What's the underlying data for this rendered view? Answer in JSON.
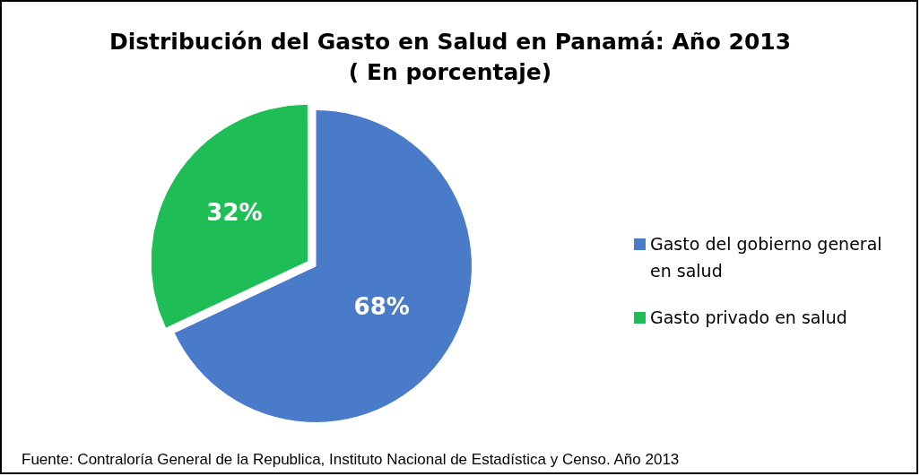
{
  "chart_data": {
    "type": "pie",
    "title": "Distribución del Gasto en Salud en Panamá: Año 2013",
    "subtitle": "( En porcentaje)",
    "categories": [
      "Gasto del gobierno general en salud",
      "Gasto privado en salud"
    ],
    "values": [
      68,
      32
    ],
    "colors": [
      "#4a7bc8",
      "#1fbd55"
    ],
    "value_labels": [
      "68%",
      "32%"
    ],
    "legend": "right",
    "annotations": [
      "Fuente: Contraloría General de la Republica, Instituto Nacional de Estadística y Censo. Año 2013"
    ]
  }
}
